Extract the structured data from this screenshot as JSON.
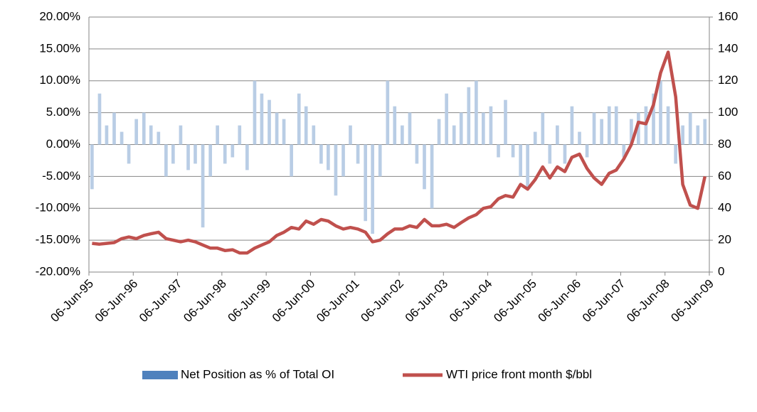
{
  "chart_data": {
    "type": "bar_line",
    "x": [
      1995.5,
      1995.67,
      1995.83,
      1996.0,
      1996.17,
      1996.33,
      1996.5,
      1996.67,
      1996.83,
      1997.0,
      1997.17,
      1997.33,
      1997.5,
      1997.67,
      1997.83,
      1998.0,
      1998.17,
      1998.33,
      1998.5,
      1998.67,
      1998.83,
      1999.0,
      1999.17,
      1999.33,
      1999.5,
      1999.67,
      1999.83,
      2000.0,
      2000.17,
      2000.33,
      2000.5,
      2000.67,
      2000.83,
      2001.0,
      2001.17,
      2001.33,
      2001.5,
      2001.67,
      2001.83,
      2002.0,
      2002.17,
      2002.33,
      2002.5,
      2002.67,
      2002.83,
      2003.0,
      2003.17,
      2003.33,
      2003.5,
      2003.67,
      2003.83,
      2004.0,
      2004.17,
      2004.33,
      2004.5,
      2004.67,
      2004.83,
      2005.0,
      2005.17,
      2005.33,
      2005.5,
      2005.67,
      2005.83,
      2006.0,
      2006.17,
      2006.33,
      2006.5,
      2006.67,
      2006.83,
      2007.0,
      2007.17,
      2007.33,
      2007.5,
      2007.67,
      2007.83,
      2008.0,
      2008.17,
      2008.33,
      2008.5,
      2008.67,
      2008.83,
      2009.0,
      2009.17,
      2009.33
    ],
    "series": [
      {
        "name": "Net Position as % of Total OI",
        "color": "#b9cde5",
        "legend_color": "#4f81bd",
        "axis": "y",
        "values": [
          -7,
          8,
          3,
          5,
          2,
          -3,
          4,
          5,
          3,
          2,
          -5,
          -3,
          3,
          -4,
          -3,
          -13,
          -5,
          3,
          -3,
          -2,
          3,
          -4,
          10,
          8,
          7,
          5,
          4,
          -5,
          8,
          6,
          3,
          -3,
          -4,
          -8,
          -5,
          3,
          -3,
          -12,
          -14,
          -5,
          10,
          6,
          3,
          5,
          -3,
          -7,
          -10,
          4,
          8,
          3,
          5,
          9,
          10,
          5,
          6,
          -2,
          7,
          -2,
          -5,
          -7,
          2,
          5,
          -3,
          3,
          -3,
          6,
          2,
          -2,
          5,
          4,
          6,
          6,
          -2,
          4,
          5,
          6,
          8,
          10,
          6,
          -3,
          3,
          5,
          3,
          4
        ]
      },
      {
        "name": "WTI price front month $/bbl",
        "color": "#c0504d",
        "axis": "y2",
        "values": [
          18,
          17.5,
          18,
          18.5,
          21,
          22,
          21,
          23,
          24,
          25,
          21,
          20,
          19,
          20,
          19,
          17,
          15,
          15,
          13.5,
          14,
          12,
          12,
          15,
          17,
          19,
          23,
          25,
          28,
          27,
          32,
          30,
          33,
          32,
          29,
          27,
          28,
          27,
          25,
          19,
          20,
          24,
          27,
          27,
          29,
          28,
          33,
          29,
          29,
          30,
          28,
          31,
          34,
          36,
          40,
          41,
          46,
          48,
          47,
          55,
          52,
          58,
          66,
          59,
          66,
          63,
          72,
          74,
          65,
          59,
          55,
          62,
          64,
          71,
          80,
          94,
          93,
          105,
          125,
          138,
          110,
          55,
          42,
          40,
          60
        ]
      }
    ],
    "xlim": [
      1995.43,
      2009.43
    ],
    "xticks": [
      {
        "value": 1995.43,
        "label": "06-Jun-95"
      },
      {
        "value": 1996.43,
        "label": "06-Jun-96"
      },
      {
        "value": 1997.43,
        "label": "06-Jun-97"
      },
      {
        "value": 1998.43,
        "label": "06-Jun-98"
      },
      {
        "value": 1999.43,
        "label": "06-Jun-99"
      },
      {
        "value": 2000.43,
        "label": "06-Jun-00"
      },
      {
        "value": 2001.43,
        "label": "06-Jun-01"
      },
      {
        "value": 2002.43,
        "label": "06-Jun-02"
      },
      {
        "value": 2003.43,
        "label": "06-Jun-03"
      },
      {
        "value": 2004.43,
        "label": "06-Jun-04"
      },
      {
        "value": 2005.43,
        "label": "06-Jun-05"
      },
      {
        "value": 2006.43,
        "label": "06-Jun-06"
      },
      {
        "value": 2007.43,
        "label": "06-Jun-07"
      },
      {
        "value": 2008.43,
        "label": "06-Jun-08"
      },
      {
        "value": 2009.43,
        "label": "06-Jun-09"
      }
    ],
    "ylim": [
      -20,
      20
    ],
    "yticks": [
      {
        "value": -20,
        "label": "-20.00%"
      },
      {
        "value": -15,
        "label": "-15.00%"
      },
      {
        "value": -10,
        "label": "-10.00%"
      },
      {
        "value": -5,
        "label": "-5.00%"
      },
      {
        "value": 0,
        "label": "0.00%"
      },
      {
        "value": 5,
        "label": "5.00%"
      },
      {
        "value": 10,
        "label": "10.00%"
      },
      {
        "value": 15,
        "label": "15.00%"
      },
      {
        "value": 20,
        "label": "20.00%"
      }
    ],
    "y2lim": [
      0,
      160
    ],
    "y2ticks": [
      0,
      20,
      40,
      60,
      80,
      100,
      120,
      140,
      160
    ],
    "grid": true,
    "legend": "bottom"
  }
}
